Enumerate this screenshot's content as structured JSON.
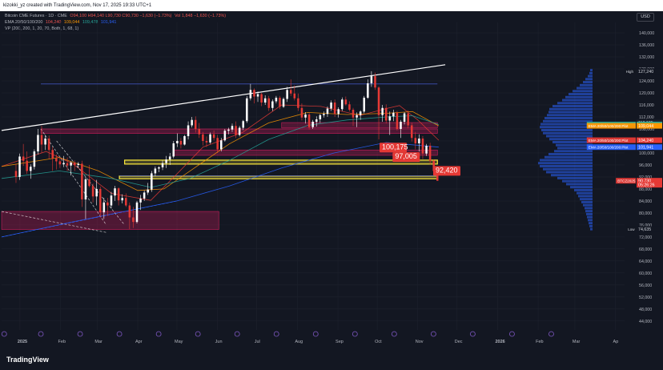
{
  "header": {
    "credit": "kizokki_yz created with TradingView.com, Nov 17, 2025 19:33 UTC+1",
    "symbol": "Bitcoin CME Futures · 1D · CME",
    "ohlc": "O94,100 H94,140 L90,730 C90,730 −1,630 (−1.73%)",
    "volume": "Vol 1,848 −1,630 (−1.73%)",
    "ema_label": "EMA 20/50/100/200",
    "ema_values": [
      "104,240",
      "109,044",
      "109,478",
      "101,941"
    ],
    "vp_label": "VP (200, 200, 1, 20, 70, Both, 1, 68, 1)",
    "currency": "USD"
  },
  "footer": {
    "brand": "TradingView"
  },
  "colors": {
    "background": "#131722",
    "up": "#ffffff",
    "down": "#e53935",
    "ema20": "#e53935",
    "ema50": "#ff9800",
    "ema100": "#26a69a",
    "ema200": "#2962ff",
    "zone_pink": "#e91e63",
    "zone_yellow": "#ffeb3b",
    "vp": "#2962ff"
  },
  "chart_data": {
    "type": "candlestick",
    "x_labels": [
      "2025",
      "Feb",
      "Mar",
      "Apr",
      "May",
      "Jun",
      "Jul",
      "Aug",
      "Sep",
      "Oct",
      "Nov",
      "Dec",
      "2026",
      "Feb",
      "Mar",
      "Ap"
    ],
    "x_label_day_index": [
      0,
      31,
      59,
      90,
      120,
      151,
      181,
      212,
      243,
      273,
      304,
      334,
      365,
      396,
      424,
      455
    ],
    "x_range_days": [
      -14,
      462
    ],
    "y_ticks": [
      "140,000",
      "136,000",
      "132,000",
      "128,000",
      "124,000",
      "120,000",
      "116,000",
      "112,000",
      "108,000",
      "104,000",
      "100,000",
      "96,000",
      "92,000",
      "88,000",
      "84,000",
      "80,000",
      "76,000",
      "72,000",
      "68,000",
      "64,000",
      "60,000",
      "56,000",
      "52,000",
      "48,000",
      "44,000"
    ],
    "ylim": [
      41000,
      143500
    ],
    "candles_ohlc": [
      [
        94000,
        96400,
        90000,
        92000
      ],
      [
        92000,
        99800,
        91000,
        98800
      ],
      [
        98800,
        103000,
        95700,
        97400
      ],
      [
        97400,
        100500,
        93000,
        94000
      ],
      [
        94000,
        96200,
        91400,
        95400
      ],
      [
        95400,
        101200,
        94500,
        100500
      ],
      [
        100500,
        108000,
        99500,
        106000
      ],
      [
        106000,
        109000,
        100000,
        102800
      ],
      [
        102800,
        106000,
        101000,
        104800
      ],
      [
        104800,
        105800,
        98000,
        101000
      ],
      [
        101000,
        102000,
        94000,
        98200
      ],
      [
        98200,
        99500,
        94500,
        97200
      ],
      [
        97200,
        98500,
        95000,
        96200
      ],
      [
        96200,
        99000,
        95300,
        96600
      ],
      [
        96600,
        98500,
        94000,
        95800
      ],
      [
        95800,
        97200,
        92500,
        96800
      ],
      [
        96800,
        97500,
        94000,
        96000
      ],
      [
        96000,
        97000,
        95000,
        96400
      ],
      [
        96400,
        97400,
        82000,
        84500
      ],
      [
        84500,
        92000,
        78000,
        91200
      ],
      [
        91200,
        96000,
        88500,
        89000
      ],
      [
        89000,
        89800,
        83500,
        85500
      ],
      [
        85500,
        91000,
        82500,
        88000
      ],
      [
        88000,
        88800,
        78500,
        80200
      ],
      [
        80200,
        85000,
        78000,
        83500
      ],
      [
        83500,
        85000,
        79000,
        82500
      ],
      [
        82500,
        87000,
        81500,
        85800
      ],
      [
        85800,
        89000,
        84000,
        88200
      ],
      [
        88200,
        88500,
        82500,
        84200
      ],
      [
        84200,
        86200,
        83200,
        85000
      ],
      [
        85000,
        86500,
        82000,
        82500
      ],
      [
        82500,
        83500,
        74600,
        78500
      ],
      [
        78500,
        82000,
        75000,
        77000
      ],
      [
        77000,
        84000,
        76500,
        83500
      ],
      [
        83500,
        86000,
        81000,
        84800
      ],
      [
        84800,
        87500,
        84000,
        86800
      ],
      [
        86800,
        90000,
        86000,
        87800
      ],
      [
        87800,
        94000,
        87000,
        93200
      ],
      [
        93200,
        95500,
        92300,
        94800
      ],
      [
        94800,
        95600,
        93600,
        95200
      ],
      [
        95200,
        97500,
        94300,
        96600
      ],
      [
        96600,
        99000,
        95000,
        97800
      ],
      [
        97800,
        100000,
        96000,
        98800
      ],
      [
        98800,
        104000,
        98200,
        103200
      ],
      [
        103200,
        106500,
        102000,
        104000
      ],
      [
        104000,
        105000,
        101500,
        102800
      ],
      [
        102800,
        106000,
        102500,
        105600
      ],
      [
        105600,
        110500,
        104500,
        109200
      ],
      [
        109200,
        112000,
        108500,
        111000
      ],
      [
        111000,
        112200,
        106800,
        108000
      ],
      [
        108000,
        110000,
        105000,
        106200
      ],
      [
        106200,
        107000,
        102500,
        104000
      ],
      [
        104000,
        105500,
        102000,
        103500
      ],
      [
        103500,
        106800,
        103000,
        106200
      ],
      [
        106200,
        107500,
        104200,
        105000
      ],
      [
        105000,
        106000,
        100000,
        101200
      ],
      [
        101200,
        105000,
        100500,
        104200
      ],
      [
        104200,
        108000,
        103800,
        107400
      ],
      [
        107400,
        108400,
        106200,
        107800
      ],
      [
        107800,
        109800,
        107000,
        109000
      ],
      [
        109000,
        110500,
        105000,
        106000
      ],
      [
        106000,
        109000,
        105500,
        108400
      ],
      [
        108400,
        111000,
        107600,
        110600
      ],
      [
        110600,
        119000,
        110000,
        118200
      ],
      [
        118200,
        123000,
        117500,
        121000
      ],
      [
        121000,
        121500,
        116500,
        118800
      ],
      [
        118800,
        120500,
        117000,
        119600
      ],
      [
        119600,
        120000,
        115600,
        116800
      ],
      [
        116800,
        119200,
        116000,
        118200
      ],
      [
        118200,
        119000,
        114000,
        115000
      ],
      [
        115000,
        117800,
        114000,
        117200
      ],
      [
        117200,
        119000,
        116500,
        118400
      ],
      [
        118400,
        119000,
        114600,
        115400
      ],
      [
        115400,
        118500,
        115000,
        118000
      ],
      [
        118000,
        122000,
        117000,
        121000
      ],
      [
        121000,
        124500,
        119000,
        119800
      ],
      [
        119800,
        122500,
        117500,
        118200
      ],
      [
        118200,
        119800,
        114000,
        115000
      ],
      [
        115000,
        116500,
        110800,
        111800
      ],
      [
        111800,
        113600,
        109800,
        112800
      ],
      [
        112800,
        113500,
        107800,
        108600
      ],
      [
        108600,
        111000,
        108000,
        110400
      ],
      [
        110400,
        112200,
        108800,
        111200
      ],
      [
        111200,
        113000,
        110000,
        112600
      ],
      [
        112600,
        113800,
        111800,
        113000
      ],
      [
        113000,
        115500,
        112000,
        114800
      ],
      [
        114800,
        117500,
        114000,
        116800
      ],
      [
        116800,
        117800,
        112000,
        113000
      ],
      [
        113000,
        115200,
        111800,
        114600
      ],
      [
        114600,
        118500,
        114000,
        117800
      ],
      [
        117800,
        118800,
        115800,
        116200
      ],
      [
        116200,
        117200,
        113800,
        114400
      ],
      [
        114400,
        115000,
        109000,
        111800
      ],
      [
        111800,
        113500,
        108600,
        112600
      ],
      [
        112600,
        114200,
        111000,
        113800
      ],
      [
        113800,
        119000,
        113200,
        118400
      ],
      [
        118400,
        124500,
        118000,
        123200
      ],
      [
        123200,
        127240,
        122000,
        125600
      ],
      [
        125600,
        126800,
        121000,
        121800
      ],
      [
        121800,
        122200,
        104500,
        112600
      ],
      [
        112600,
        116000,
        110400,
        115000
      ],
      [
        115000,
        116200,
        109800,
        110800
      ],
      [
        110800,
        113800,
        106000,
        112200
      ],
      [
        112200,
        114400,
        110600,
        113400
      ],
      [
        113400,
        114000,
        107500,
        108000
      ],
      [
        108000,
        111000,
        105000,
        110400
      ],
      [
        110400,
        113600,
        109500,
        113200
      ],
      [
        113200,
        114200,
        108200,
        109200
      ],
      [
        109200,
        110000,
        103800,
        105000
      ],
      [
        105000,
        107000,
        101200,
        103200
      ],
      [
        103200,
        106200,
        100500,
        104800
      ],
      [
        104800,
        105600,
        98000,
        99800
      ],
      [
        99800,
        103000,
        99000,
        102400
      ],
      [
        102400,
        103400,
        96200,
        97400
      ],
      [
        97400,
        97800,
        93500,
        94000
      ],
      [
        94000,
        94140,
        90730,
        90730
      ]
    ],
    "ema": {
      "ema20_points": [
        [
          -14,
          95500
        ],
        [
          20,
          100500
        ],
        [
          40,
          96500
        ],
        [
          70,
          86500
        ],
        [
          100,
          84200
        ],
        [
          120,
          93000
        ],
        [
          140,
          102000
        ],
        [
          170,
          106800
        ],
        [
          200,
          116000
        ],
        [
          230,
          115500
        ],
        [
          260,
          112500
        ],
        [
          280,
          114800
        ],
        [
          290,
          115800
        ],
        [
          304,
          111000
        ],
        [
          320,
          104240
        ]
      ],
      "ema50_points": [
        [
          -14,
          95500
        ],
        [
          30,
          98500
        ],
        [
          60,
          94000
        ],
        [
          90,
          87500
        ],
        [
          110,
          88000
        ],
        [
          130,
          94000
        ],
        [
          160,
          103000
        ],
        [
          190,
          110000
        ],
        [
          220,
          113500
        ],
        [
          250,
          112800
        ],
        [
          280,
          113200
        ],
        [
          300,
          113800
        ],
        [
          320,
          109044
        ]
      ],
      "ema100_points": [
        [
          -14,
          91500
        ],
        [
          30,
          94000
        ],
        [
          70,
          91500
        ],
        [
          100,
          88500
        ],
        [
          130,
          91500
        ],
        [
          160,
          97500
        ],
        [
          190,
          104500
        ],
        [
          220,
          109200
        ],
        [
          250,
          111000
        ],
        [
          280,
          112000
        ],
        [
          300,
          112400
        ],
        [
          320,
          109478
        ]
      ],
      "ema200_points": [
        [
          -14,
          72000
        ],
        [
          40,
          77000
        ],
        [
          80,
          80500
        ],
        [
          120,
          84000
        ],
        [
          160,
          89000
        ],
        [
          200,
          95000
        ],
        [
          240,
          100000
        ],
        [
          280,
          103500
        ],
        [
          320,
          101941
        ]
      ]
    },
    "zones": [
      {
        "color": "pink",
        "x_days": [
          -14,
          152
        ],
        "y": [
          74500,
          80500
        ]
      },
      {
        "color": "pink",
        "x_days": [
          16,
          319
        ],
        "y": [
          106500,
          108000
        ]
      },
      {
        "color": "pink",
        "x_days": [
          200,
          319
        ],
        "y": [
          108300,
          110125
        ]
      },
      {
        "color": "pink",
        "x_days": [
          118,
          319
        ],
        "y": [
          99200,
          101000
        ]
      },
      {
        "color": "yellow",
        "x_days": [
          80,
          319
        ],
        "y": [
          96300,
          97600
        ]
      },
      {
        "color": "yellow",
        "x_days": [
          76,
          319
        ],
        "y": [
          91400,
          92300
        ]
      }
    ],
    "hlines": [
      {
        "y": 123000,
        "x_days": [
          16,
          319
        ]
      },
      {
        "y": 92420,
        "x_days": [
          76,
          319
        ]
      }
    ],
    "trendlines": [
      {
        "color": "white",
        "points": [
          [
            -14,
            107500
          ],
          [
            325,
            129400
          ]
        ]
      },
      {
        "color": "white-dashed",
        "points": [
          [
            16,
            108000
          ],
          [
            66,
            76000
          ]
        ]
      },
      {
        "color": "white-dashed",
        "points": [
          [
            -14,
            80500
          ],
          [
            66,
            73500
          ]
        ]
      },
      {
        "color": "white-dashed",
        "points": [
          [
            28,
            104000
          ],
          [
            80,
            76000
          ]
        ]
      },
      {
        "color": "blue-dashed",
        "points": [
          [
            -14,
            72000
          ],
          [
            120,
            84000
          ]
        ]
      }
    ],
    "annotations": [
      {
        "text": "100,175",
        "x_day": 276,
        "y": 100175
      },
      {
        "text": "97,005",
        "x_day": 286,
        "y": 97005
      },
      {
        "text": "92,420",
        "x_day": 317,
        "y": 92420
      }
    ],
    "axis_labels": [
      {
        "text": "127,240",
        "prefix": "High",
        "value": 127240
      },
      {
        "text": "110,125",
        "value": 110125
      },
      {
        "text": "109,478",
        "prefix": "EMA 20/50/100/200:Plot",
        "value": 109478
      },
      {
        "text": "109,044",
        "prefix": "EMA 20/50/100/200:Plot",
        "value": 109044
      },
      {
        "text": "104,240",
        "prefix": "EMA 20/50/100/200:Plot",
        "value": 104240
      },
      {
        "text": "101,941",
        "prefix": "EMA 20/50/100/200:Plot",
        "value": 101941
      },
      {
        "text": "90,730",
        "prefix": "BTCZ2025",
        "value": 90730
      },
      {
        "text": "05:26:26",
        "value": 89400
      },
      {
        "text": "74,635",
        "prefix": "Low",
        "value": 74635
      }
    ],
    "volume_profile": {
      "price_start": 74000,
      "price_step": 1000,
      "widths": [
        3,
        4,
        5,
        6,
        7,
        8,
        9,
        10,
        12,
        14,
        16,
        18,
        20,
        23,
        28,
        33,
        38,
        44,
        52,
        58,
        62,
        66,
        68,
        66,
        60,
        55,
        48,
        44,
        46,
        50,
        54,
        58,
        62,
        64,
        66,
        65,
        62,
        60,
        57,
        55,
        54,
        50,
        44,
        38,
        34,
        30,
        25,
        20,
        16,
        12,
        9,
        6,
        4,
        3
      ]
    }
  }
}
